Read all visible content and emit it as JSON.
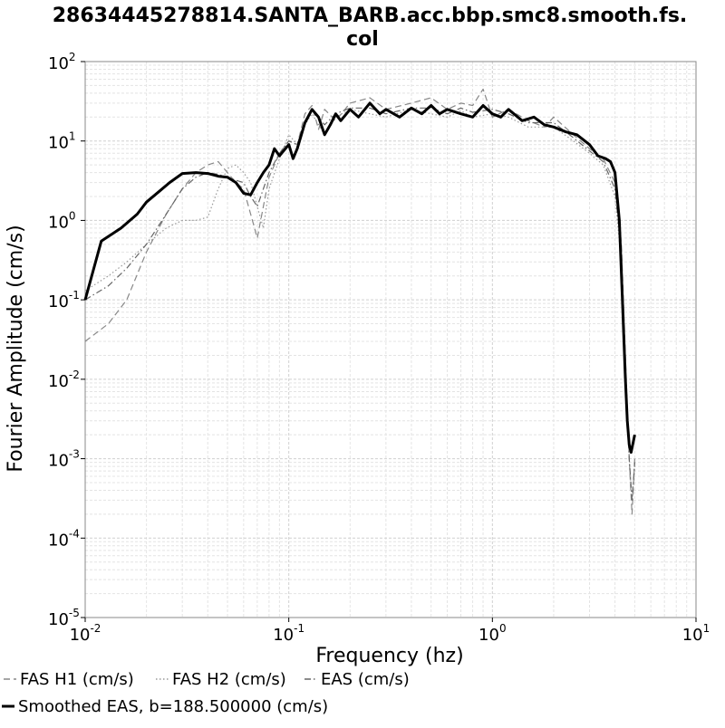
{
  "chart_data": {
    "type": "line",
    "title_lines": [
      "28634445278814.SANTA_BARB.acc.bbp.smc8.smooth.fs.",
      "col"
    ],
    "xlabel": "Frequency (hz)",
    "ylabel": "Fourier Amplitude (cm/s)",
    "xscale": "log",
    "yscale": "log",
    "xlim": [
      0.01,
      10
    ],
    "ylim": [
      1e-05,
      100
    ],
    "x_ticks": [
      {
        "base": "10",
        "exp": "-2"
      },
      {
        "base": "10",
        "exp": "-1"
      },
      {
        "base": "10",
        "exp": "0"
      },
      {
        "base": "10",
        "exp": "1"
      }
    ],
    "y_ticks": [
      {
        "base": "10",
        "exp": "-5"
      },
      {
        "base": "10",
        "exp": "-4"
      },
      {
        "base": "10",
        "exp": "-3"
      },
      {
        "base": "10",
        "exp": "-2"
      },
      {
        "base": "10",
        "exp": "-1"
      },
      {
        "base": "10",
        "exp": "0"
      },
      {
        "base": "10",
        "exp": "1"
      },
      {
        "base": "10",
        "exp": "2"
      }
    ],
    "grid": true,
    "legend_position": "bottom",
    "series": [
      {
        "name": "FAS H1 (cm/s)",
        "color": "#888888",
        "style": "dashed",
        "points": [
          [
            0.01,
            0.03
          ],
          [
            0.013,
            0.05
          ],
          [
            0.016,
            0.1
          ],
          [
            0.02,
            0.4
          ],
          [
            0.025,
            1.2
          ],
          [
            0.03,
            2.5
          ],
          [
            0.035,
            4
          ],
          [
            0.04,
            5
          ],
          [
            0.045,
            5.5
          ],
          [
            0.05,
            4
          ],
          [
            0.055,
            3
          ],
          [
            0.06,
            2.5
          ],
          [
            0.065,
            1.2
          ],
          [
            0.07,
            0.6
          ],
          [
            0.075,
            1.5
          ],
          [
            0.08,
            3.5
          ],
          [
            0.09,
            7
          ],
          [
            0.1,
            10
          ],
          [
            0.11,
            9
          ],
          [
            0.12,
            22
          ],
          [
            0.13,
            28
          ],
          [
            0.14,
            14
          ],
          [
            0.15,
            25
          ],
          [
            0.17,
            18
          ],
          [
            0.2,
            30
          ],
          [
            0.25,
            35
          ],
          [
            0.3,
            25
          ],
          [
            0.4,
            30
          ],
          [
            0.5,
            35
          ],
          [
            0.6,
            25
          ],
          [
            0.7,
            30
          ],
          [
            0.8,
            28
          ],
          [
            0.9,
            45
          ],
          [
            1.0,
            20
          ],
          [
            1.2,
            25
          ],
          [
            1.5,
            18
          ],
          [
            1.8,
            15
          ],
          [
            2.0,
            20
          ],
          [
            2.5,
            12
          ],
          [
            3.0,
            8
          ],
          [
            3.5,
            6
          ],
          [
            4.0,
            3
          ],
          [
            4.3,
            0.5
          ],
          [
            4.5,
            0.02
          ],
          [
            4.7,
            0.001
          ],
          [
            4.85,
            0.0002
          ],
          [
            5.0,
            0.001
          ]
        ]
      },
      {
        "name": "FAS H2 (cm/s)",
        "color": "#999999",
        "style": "dotted",
        "points": [
          [
            0.01,
            0.13
          ],
          [
            0.013,
            0.2
          ],
          [
            0.016,
            0.3
          ],
          [
            0.02,
            0.5
          ],
          [
            0.025,
            0.8
          ],
          [
            0.03,
            1.0
          ],
          [
            0.035,
            1.0
          ],
          [
            0.04,
            1.1
          ],
          [
            0.045,
            2.5
          ],
          [
            0.05,
            4.5
          ],
          [
            0.055,
            5
          ],
          [
            0.06,
            4
          ],
          [
            0.065,
            3
          ],
          [
            0.07,
            1.5
          ],
          [
            0.075,
            0.8
          ],
          [
            0.08,
            2.5
          ],
          [
            0.09,
            6
          ],
          [
            0.1,
            12
          ],
          [
            0.11,
            9
          ],
          [
            0.12,
            16
          ],
          [
            0.13,
            22
          ],
          [
            0.15,
            12
          ],
          [
            0.17,
            20
          ],
          [
            0.2,
            25
          ],
          [
            0.25,
            22
          ],
          [
            0.3,
            20
          ],
          [
            0.4,
            25
          ],
          [
            0.5,
            22
          ],
          [
            0.6,
            20
          ],
          [
            0.7,
            24
          ],
          [
            0.8,
            20
          ],
          [
            1.0,
            22
          ],
          [
            1.2,
            20
          ],
          [
            1.5,
            15
          ],
          [
            2.0,
            15
          ],
          [
            2.5,
            10
          ],
          [
            3.0,
            7
          ],
          [
            3.5,
            5
          ],
          [
            4.0,
            2
          ],
          [
            4.3,
            0.3
          ],
          [
            4.5,
            0.01
          ],
          [
            4.7,
            0.001
          ],
          [
            4.85,
            0.0003
          ],
          [
            5.0,
            0.0008
          ]
        ]
      },
      {
        "name": "EAS (cm/s)",
        "color": "#666666",
        "style": "dashdot",
        "points": [
          [
            0.01,
            0.1
          ],
          [
            0.013,
            0.15
          ],
          [
            0.016,
            0.25
          ],
          [
            0.02,
            0.5
          ],
          [
            0.025,
            1.2
          ],
          [
            0.03,
            2.5
          ],
          [
            0.035,
            3.5
          ],
          [
            0.04,
            4.0
          ],
          [
            0.045,
            3.8
          ],
          [
            0.05,
            3.5
          ],
          [
            0.055,
            3.2
          ],
          [
            0.06,
            3.0
          ],
          [
            0.065,
            2.0
          ],
          [
            0.07,
            1.5
          ],
          [
            0.075,
            2.5
          ],
          [
            0.08,
            4
          ],
          [
            0.09,
            7
          ],
          [
            0.1,
            10
          ],
          [
            0.11,
            9
          ],
          [
            0.12,
            18
          ],
          [
            0.13,
            24
          ],
          [
            0.15,
            16
          ],
          [
            0.17,
            22
          ],
          [
            0.2,
            26
          ],
          [
            0.25,
            26
          ],
          [
            0.3,
            22
          ],
          [
            0.4,
            26
          ],
          [
            0.5,
            26
          ],
          [
            0.6,
            22
          ],
          [
            0.7,
            26
          ],
          [
            0.8,
            23
          ],
          [
            1.0,
            25
          ],
          [
            1.2,
            22
          ],
          [
            1.5,
            17
          ],
          [
            2.0,
            17
          ],
          [
            2.5,
            11
          ],
          [
            3.0,
            7.5
          ],
          [
            3.5,
            5.5
          ],
          [
            4.0,
            2.5
          ],
          [
            4.3,
            0.4
          ],
          [
            4.5,
            0.015
          ],
          [
            4.7,
            0.001
          ],
          [
            4.85,
            0.0003
          ],
          [
            5.0,
            0.0009
          ]
        ]
      },
      {
        "name": "Smoothed EAS, b=188.500000 (cm/s)",
        "color": "#000000",
        "style": "solid",
        "points": [
          [
            0.01,
            0.1
          ],
          [
            0.012,
            0.55
          ],
          [
            0.015,
            0.8
          ],
          [
            0.018,
            1.2
          ],
          [
            0.02,
            1.7
          ],
          [
            0.023,
            2.3
          ],
          [
            0.026,
            3.0
          ],
          [
            0.03,
            3.9
          ],
          [
            0.035,
            4.0
          ],
          [
            0.04,
            3.9
          ],
          [
            0.045,
            3.6
          ],
          [
            0.05,
            3.5
          ],
          [
            0.055,
            3.0
          ],
          [
            0.06,
            2.2
          ],
          [
            0.065,
            2.1
          ],
          [
            0.07,
            3.0
          ],
          [
            0.075,
            4.0
          ],
          [
            0.08,
            5.0
          ],
          [
            0.085,
            8.0
          ],
          [
            0.09,
            6.5
          ],
          [
            0.1,
            9.0
          ],
          [
            0.105,
            6.0
          ],
          [
            0.11,
            8.0
          ],
          [
            0.12,
            17
          ],
          [
            0.13,
            25
          ],
          [
            0.14,
            20
          ],
          [
            0.15,
            12
          ],
          [
            0.16,
            16
          ],
          [
            0.17,
            22
          ],
          [
            0.18,
            18
          ],
          [
            0.2,
            25
          ],
          [
            0.22,
            20
          ],
          [
            0.25,
            30
          ],
          [
            0.28,
            22
          ],
          [
            0.3,
            25
          ],
          [
            0.35,
            20
          ],
          [
            0.4,
            26
          ],
          [
            0.45,
            22
          ],
          [
            0.5,
            28
          ],
          [
            0.55,
            22
          ],
          [
            0.6,
            25
          ],
          [
            0.7,
            22
          ],
          [
            0.8,
            20
          ],
          [
            0.9,
            28
          ],
          [
            1.0,
            22
          ],
          [
            1.1,
            20
          ],
          [
            1.2,
            25
          ],
          [
            1.4,
            18
          ],
          [
            1.6,
            20
          ],
          [
            1.8,
            16
          ],
          [
            2.0,
            15
          ],
          [
            2.3,
            13
          ],
          [
            2.6,
            12
          ],
          [
            3.0,
            9
          ],
          [
            3.3,
            6.5
          ],
          [
            3.6,
            6
          ],
          [
            3.8,
            5.5
          ],
          [
            4.0,
            4.0
          ],
          [
            4.2,
            1.0
          ],
          [
            4.35,
            0.1
          ],
          [
            4.5,
            0.01
          ],
          [
            4.6,
            0.003
          ],
          [
            4.7,
            0.0015
          ],
          [
            4.8,
            0.0012
          ],
          [
            5.0,
            0.002
          ]
        ]
      }
    ]
  }
}
